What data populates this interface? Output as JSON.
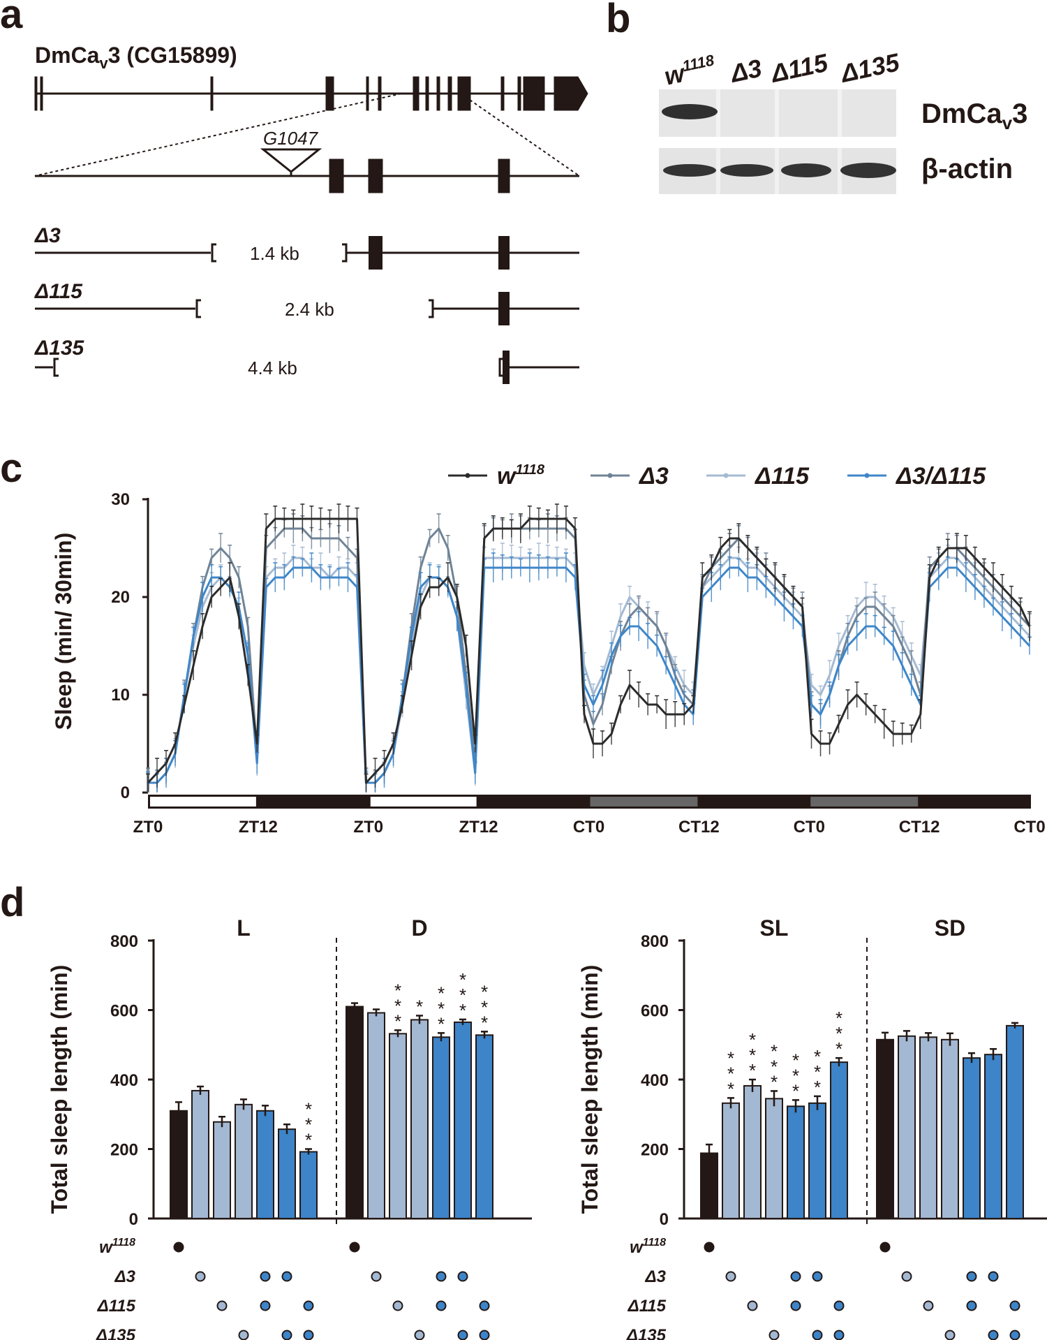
{
  "panel_a": {
    "label": "a",
    "gene_name": "DmCa",
    "gene_sub": "v",
    "gene_suffix": "3 (CG15899)",
    "insertion": "G1047",
    "alleles": [
      {
        "name": "Δ3",
        "size": "1.4 kb"
      },
      {
        "name": "Δ115",
        "size": "2.4 kb"
      },
      {
        "name": "Δ135",
        "size": "4.4 kb"
      }
    ]
  },
  "panel_b": {
    "label": "b",
    "lanes": [
      "w",
      "Δ3",
      "Δ115",
      "Δ135"
    ],
    "lane_sup": "1118",
    "blot_protein": "DmCa",
    "blot_sub": "v",
    "blot_suffix": "3",
    "loading_control": "β-actin"
  },
  "panel_c": {
    "label": "c",
    "ylabel": "Sleep (min/ 30min)",
    "x_ticks": [
      "ZT0",
      "ZT12",
      "ZT0",
      "ZT12",
      "CT0",
      "CT12",
      "CT0",
      "CT12",
      "CT0"
    ],
    "light_bar": [
      "light",
      "dark",
      "light",
      "dark",
      "subjective day",
      "subjective night",
      "subjective day",
      "subjective night"
    ],
    "colors": {
      "w1118": "#2b2b2b",
      "d3": "#6f8396",
      "d115": "#a5bad2",
      "d3_d115": "#3f86c8"
    }
  },
  "panel_d": {
    "label": "d",
    "ylabel": "Total sleep length (min)",
    "genotype_rows": [
      "w",
      "Δ3",
      "Δ115",
      "Δ135"
    ],
    "genotype_sup": "1118"
  },
  "chart_data": [
    {
      "type": "line",
      "title": "",
      "xlabel": "",
      "ylabel": "Sleep (min/ 30min)",
      "ylim": [
        0,
        30
      ],
      "y_ticks": [
        0,
        10,
        20,
        30
      ],
      "x_tick_labels": [
        "ZT0",
        "ZT12",
        "ZT0",
        "ZT12",
        "CT0",
        "CT12",
        "CT0",
        "CT12",
        "CT0"
      ],
      "legend": [
        "w1118",
        "Δ3",
        "Δ115",
        "Δ3/Δ115"
      ],
      "legend_position": "top-right",
      "series": [
        {
          "name": "w1118",
          "values": [
            1,
            2,
            3,
            5,
            9,
            13,
            17,
            20,
            21,
            22,
            18,
            12,
            5,
            27,
            28,
            28,
            28,
            28,
            28,
            28,
            28,
            28,
            28,
            28,
            1,
            2,
            3,
            5,
            9,
            14,
            19,
            21,
            21,
            22,
            20,
            15,
            5,
            26,
            27,
            27,
            27,
            27,
            28,
            28,
            28,
            28,
            28,
            27,
            8,
            5,
            5,
            6,
            9,
            11,
            10,
            9,
            9,
            8,
            8,
            8,
            9,
            22,
            23,
            25,
            26,
            26,
            25,
            24,
            23,
            22,
            21,
            20,
            19,
            6,
            5,
            5,
            7,
            9,
            10,
            9,
            8,
            7,
            6,
            6,
            6,
            8,
            22,
            24,
            25,
            25,
            25,
            24,
            23,
            22,
            21,
            20,
            19,
            17
          ]
        },
        {
          "name": "Δ3",
          "values": [
            1,
            1,
            2,
            4,
            10,
            16,
            21,
            24,
            25,
            24,
            22,
            17,
            4,
            25,
            26,
            27,
            27,
            27,
            26,
            26,
            26,
            26,
            25,
            24,
            1,
            1,
            2,
            4,
            10,
            17,
            23,
            26,
            27,
            25,
            20,
            12,
            3,
            26,
            27,
            27,
            27,
            27,
            27,
            27,
            27,
            27,
            27,
            26,
            10,
            7,
            9,
            13,
            16,
            18,
            19,
            18,
            17,
            15,
            12,
            10,
            9,
            21,
            23,
            24,
            25,
            26,
            25,
            24,
            23,
            22,
            21,
            20,
            19,
            9,
            8,
            10,
            13,
            16,
            18,
            19,
            19,
            18,
            17,
            15,
            13,
            10,
            23,
            24,
            25,
            25,
            24,
            23,
            22,
            21,
            20,
            19,
            18,
            17
          ]
        },
        {
          "name": "Δ115",
          "values": [
            1,
            1,
            2,
            4,
            10,
            15,
            19,
            21,
            22,
            21,
            19,
            14,
            3,
            22,
            23,
            23,
            24,
            24,
            23,
            23,
            22,
            23,
            23,
            22,
            1,
            1,
            2,
            4,
            9,
            15,
            20,
            22,
            22,
            21,
            18,
            10,
            2,
            24,
            24,
            24,
            24,
            24,
            24,
            24,
            24,
            24,
            24,
            23,
            13,
            10,
            12,
            15,
            18,
            20,
            19,
            18,
            17,
            15,
            13,
            11,
            10,
            21,
            22,
            23,
            24,
            24,
            23,
            23,
            22,
            21,
            20,
            19,
            18,
            11,
            10,
            12,
            15,
            17,
            19,
            20,
            20,
            19,
            18,
            16,
            14,
            12,
            22,
            23,
            24,
            24,
            23,
            22,
            21,
            20,
            19,
            18,
            17,
            16
          ]
        },
        {
          "name": "Δ3/Δ115",
          "values": [
            1,
            1,
            2,
            4,
            10,
            16,
            20,
            22,
            22,
            21,
            19,
            14,
            3,
            21,
            22,
            22,
            23,
            23,
            23,
            22,
            22,
            22,
            22,
            21,
            1,
            1,
            2,
            4,
            10,
            16,
            21,
            22,
            22,
            21,
            18,
            11,
            2,
            23,
            23,
            23,
            23,
            23,
            23,
            23,
            23,
            23,
            23,
            22,
            11,
            9,
            11,
            14,
            16,
            17,
            17,
            16,
            15,
            13,
            11,
            9,
            8,
            20,
            21,
            22,
            23,
            23,
            22,
            22,
            21,
            20,
            19,
            18,
            17,
            9,
            8,
            10,
            13,
            15,
            16,
            17,
            17,
            16,
            15,
            13,
            11,
            9,
            21,
            22,
            23,
            23,
            22,
            21,
            20,
            19,
            18,
            17,
            16,
            15
          ]
        }
      ]
    },
    {
      "type": "bar",
      "title": "L / D",
      "ylabel": "Total sleep length (min)",
      "ylim": [
        0,
        800
      ],
      "y_ticks": [
        0,
        200,
        400,
        600,
        800
      ],
      "groups": [
        "L",
        "D"
      ],
      "genotypes": [
        {
          "w1118": 1,
          "d3": 0,
          "d115": 0,
          "d135": 0,
          "color": "#231815"
        },
        {
          "w1118": 0,
          "d3": 1,
          "d115": 0,
          "d135": 0,
          "color": "#a3b8d2"
        },
        {
          "w1118": 0,
          "d3": 0,
          "d115": 1,
          "d135": 0,
          "color": "#a3b8d2"
        },
        {
          "w1118": 0,
          "d3": 0,
          "d115": 0,
          "d135": 1,
          "color": "#a3b8d2"
        },
        {
          "w1118": 0,
          "d3": 1,
          "d115": 1,
          "d135": 0,
          "color": "#3d84c9"
        },
        {
          "w1118": 0,
          "d3": 1,
          "d115": 0,
          "d135": 1,
          "color": "#3d84c9"
        },
        {
          "w1118": 0,
          "d3": 0,
          "d115": 1,
          "d135": 1,
          "color": "#3d84c9"
        }
      ],
      "series": [
        {
          "name": "L",
          "values": [
            310,
            368,
            278,
            328,
            310,
            257,
            192
          ],
          "errors": [
            25,
            12,
            15,
            15,
            15,
            14,
            8
          ],
          "sig": [
            "",
            "",
            "",
            "",
            "",
            "",
            "***"
          ]
        },
        {
          "name": "D",
          "values": [
            610,
            592,
            532,
            572,
            522,
            565,
            528
          ],
          "errors": [
            10,
            10,
            10,
            12,
            12,
            8,
            10
          ],
          "sig": [
            "",
            "",
            "***",
            "*",
            "***",
            "***",
            "***"
          ]
        }
      ]
    },
    {
      "type": "bar",
      "title": "SL / SD",
      "ylabel": "Total sleep length (min)",
      "ylim": [
        0,
        800
      ],
      "y_ticks": [
        0,
        200,
        400,
        600,
        800
      ],
      "groups": [
        "SL",
        "SD"
      ],
      "series": [
        {
          "name": "SL",
          "values": [
            188,
            332,
            382,
            345,
            323,
            332,
            450
          ],
          "errors": [
            25,
            15,
            18,
            22,
            18,
            20,
            12
          ],
          "sig": [
            "",
            "***",
            "***",
            "***",
            "***",
            "***",
            "***"
          ]
        },
        {
          "name": "SD",
          "values": [
            515,
            525,
            522,
            515,
            462,
            472,
            555
          ],
          "errors": [
            20,
            15,
            12,
            18,
            14,
            16,
            8
          ],
          "sig": [
            "",
            "",
            "",
            "",
            "",
            "",
            ""
          ]
        }
      ]
    }
  ]
}
